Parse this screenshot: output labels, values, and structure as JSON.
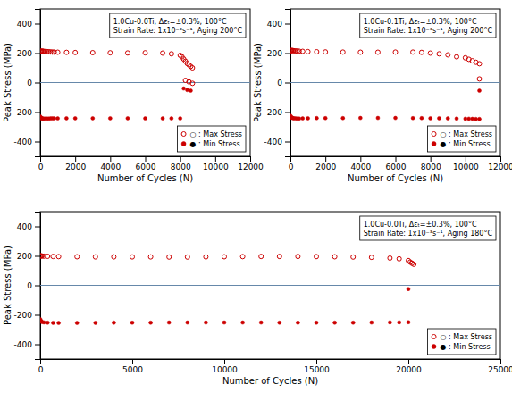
{
  "chart_data": [
    {
      "type": "scatter",
      "title": "1.0Cu-0.0Ti, Δεₜ=±0.3%, 100°C",
      "subtitle": "Strain Rate: 1x10⁻³s⁻¹, Aging 200°C",
      "xlabel": "Number of Cycles (N)",
      "ylabel": "Peak Stress (MPa)",
      "xlim": [
        0,
        12000
      ],
      "xticks": [
        0,
        2000,
        4000,
        6000,
        8000,
        10000,
        12000
      ],
      "ylim": [
        -500,
        500
      ],
      "yticks": [
        -400,
        -200,
        0,
        200,
        400
      ],
      "legend": "lower right",
      "hline": {
        "y": 0,
        "color": "#6688aa"
      },
      "series": [
        {
          "name": "○ : Max Stress",
          "marker": "open-circle",
          "color": "#cc0000",
          "x": [
            1,
            30,
            60,
            100,
            150,
            200,
            300,
            400,
            500,
            600,
            700,
            800,
            1000,
            1500,
            2000,
            3000,
            4000,
            5000,
            6000,
            7000,
            7500,
            8000,
            8100,
            8200,
            8300,
            8400,
            8500,
            8600,
            8700
          ],
          "values": [
            210,
            212,
            213,
            213,
            213,
            212,
            211,
            210,
            209,
            208,
            207,
            207,
            206,
            205,
            204,
            203,
            202,
            201,
            202,
            200,
            195,
            185,
            175,
            160,
            145,
            130,
            120,
            110,
            100
          ]
        },
        {
          "name": "● : Min Stress",
          "marker": "circle",
          "color": "#cc0000",
          "x": [
            1,
            30,
            60,
            100,
            150,
            200,
            300,
            400,
            500,
            600,
            700,
            800,
            1000,
            1500,
            2000,
            3000,
            4000,
            5000,
            6000,
            7000,
            7500,
            8000
          ],
          "values": [
            -230,
            -238,
            -241,
            -243,
            -244,
            -244,
            -244,
            -244,
            -244,
            -243,
            -243,
            -243,
            -243,
            -242,
            -242,
            -242,
            -242,
            -242,
            -243,
            -243,
            -243,
            -243
          ]
        },
        {
          "marker": "open-circle",
          "color": "#cc0000",
          "x": [
            8300,
            8500,
            8700
          ],
          "values": [
            15,
            5,
            -5
          ]
        },
        {
          "marker": "circle",
          "color": "#cc0000",
          "x": [
            8200,
            8400,
            8600
          ],
          "values": [
            -40,
            -50,
            -55
          ]
        }
      ]
    },
    {
      "type": "scatter",
      "title": "1.0Cu-0.1Ti, Δεₜ=±0.3%, 100°C",
      "subtitle": "Strain Rate: 1x10⁻³s⁻¹, Aging 200°C",
      "xlabel": "Number of Cycles (N)",
      "ylabel": "Peak Stress (MPa)",
      "xlim": [
        0,
        12000
      ],
      "xticks": [
        0,
        2000,
        4000,
        6000,
        8000,
        10000,
        12000
      ],
      "ylim": [
        -500,
        500
      ],
      "yticks": [
        -400,
        -200,
        0,
        200,
        400
      ],
      "legend": "lower right",
      "hline": {
        "y": 0,
        "color": "#6688aa"
      },
      "series": [
        {
          "name": "○ : Max Stress",
          "marker": "open-circle",
          "color": "#cc0000",
          "x": [
            1,
            30,
            60,
            100,
            150,
            200,
            300,
            400,
            500,
            700,
            1000,
            1500,
            2000,
            3000,
            4000,
            5000,
            6000,
            7000,
            7500,
            8000,
            8500,
            9000,
            9500,
            10000,
            10200,
            10400,
            10600,
            10800
          ],
          "values": [
            215,
            217,
            218,
            218,
            217,
            216,
            215,
            214,
            213,
            212,
            210,
            209,
            208,
            207,
            206,
            206,
            207,
            207,
            205,
            200,
            195,
            188,
            175,
            168,
            158,
            148,
            138,
            128
          ]
        },
        {
          "name": "● : Min Stress",
          "marker": "circle",
          "color": "#cc0000",
          "x": [
            1,
            30,
            60,
            100,
            150,
            200,
            300,
            400,
            500,
            700,
            1000,
            1500,
            2000,
            3000,
            4000,
            5000,
            6000,
            7000,
            7500,
            8000,
            8500,
            9000,
            9500,
            10000,
            10200,
            10400,
            10600,
            10800
          ],
          "values": [
            -225,
            -232,
            -236,
            -239,
            -241,
            -242,
            -243,
            -244,
            -244,
            -243,
            -242,
            -241,
            -241,
            -241,
            -240,
            -240,
            -240,
            -241,
            -241,
            -242,
            -242,
            -243,
            -244,
            -245,
            -245,
            -246,
            -247,
            -247
          ]
        },
        {
          "marker": "open-circle",
          "color": "#cc0000",
          "x": [
            10800
          ],
          "values": [
            25
          ]
        },
        {
          "marker": "circle",
          "color": "#cc0000",
          "x": [
            10800
          ],
          "values": [
            -55
          ]
        }
      ]
    },
    {
      "type": "scatter",
      "title": "1.0Cu-0.0Ti, Δεₜ=±0.3%, 100°C",
      "subtitle": "Strain Rate: 1x10⁻³s⁻¹, Aging 180°C",
      "xlabel": "Number of Cycles (N)",
      "ylabel": "Peak Stress (MPa)",
      "xlim": [
        0,
        25000
      ],
      "xticks": [
        0,
        5000,
        10000,
        15000,
        20000,
        25000
      ],
      "ylim": [
        -500,
        500
      ],
      "yticks": [
        -400,
        -200,
        0,
        200,
        400
      ],
      "legend": "lower right",
      "hline": {
        "y": 0,
        "color": "#6688aa"
      },
      "series": [
        {
          "name": "○ : Max Stress",
          "marker": "open-circle",
          "color": "#cc0000",
          "x": [
            1,
            30,
            60,
            100,
            200,
            400,
            700,
            1000,
            2000,
            3000,
            4000,
            5000,
            6000,
            7000,
            8000,
            9000,
            10000,
            11000,
            12000,
            13000,
            14000,
            15000,
            16000,
            17000,
            18000,
            19000,
            19500,
            20000,
            20100,
            20200,
            20300
          ],
          "values": [
            200,
            200,
            199,
            199,
            198,
            197,
            196,
            195,
            194,
            193,
            193,
            193,
            193,
            192,
            192,
            193,
            194,
            195,
            196,
            196,
            196,
            195,
            194,
            192,
            190,
            185,
            180,
            168,
            158,
            150,
            143
          ]
        },
        {
          "name": "● : Min Stress",
          "marker": "circle",
          "color": "#cc0000",
          "x": [
            1,
            30,
            60,
            100,
            200,
            400,
            700,
            1000,
            2000,
            3000,
            4000,
            5000,
            6000,
            7000,
            8000,
            9000,
            10000,
            11000,
            12000,
            13000,
            14000,
            15000,
            16000,
            17000,
            18000,
            19000,
            19500,
            20000
          ],
          "values": [
            -230,
            -240,
            -245,
            -248,
            -251,
            -253,
            -254,
            -255,
            -255,
            -254,
            -253,
            -253,
            -253,
            -252,
            -252,
            -252,
            -252,
            -252,
            -252,
            -253,
            -253,
            -253,
            -253,
            -253,
            -252,
            -251,
            -251,
            -250
          ]
        },
        {
          "marker": "circle",
          "color": "#cc0000",
          "x": [
            20000
          ],
          "values": [
            -25
          ]
        }
      ]
    }
  ]
}
